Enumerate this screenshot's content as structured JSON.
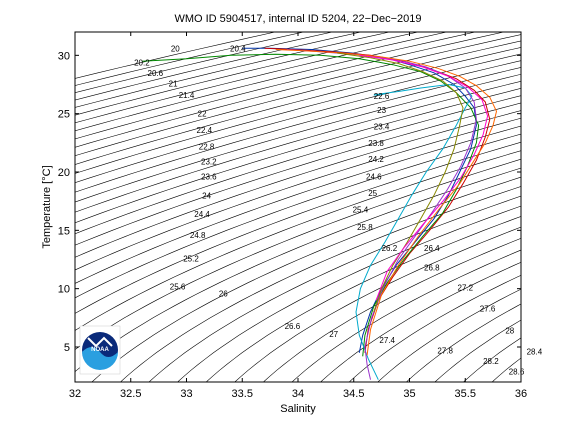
{
  "chart_data": {
    "type": "line",
    "title": "WMO ID 5904517, internal ID 5204, 22−Dec−2019",
    "xlabel": "Salinity",
    "ylabel": "Temperature [°C]",
    "xlim": [
      32,
      36
    ],
    "ylim": [
      2,
      32
    ],
    "x_ticks": [
      "32",
      "32.5",
      "33",
      "33.5",
      "34",
      "34.5",
      "35",
      "35.5",
      "36"
    ],
    "y_ticks": [
      "5",
      "10",
      "15",
      "20",
      "25",
      "30"
    ],
    "density_contours": {
      "step": 0.2,
      "range": [
        20,
        30
      ],
      "labels": [
        {
          "text": "20",
          "s": 32.9,
          "t": 30.6
        },
        {
          "text": "20.2",
          "s": 32.6,
          "t": 29.4
        },
        {
          "text": "20.4",
          "s": 33.46,
          "t": 30.6
        },
        {
          "text": "20.6",
          "s": 32.72,
          "t": 28.5
        },
        {
          "text": "21",
          "s": 32.88,
          "t": 27.6
        },
        {
          "text": "21.4",
          "s": 33.0,
          "t": 26.6
        },
        {
          "text": "22",
          "s": 33.14,
          "t": 25.0
        },
        {
          "text": "22.4",
          "s": 33.16,
          "t": 23.6
        },
        {
          "text": "22.6",
          "s": 34.75,
          "t": 26.5
        },
        {
          "text": "22.8",
          "s": 33.18,
          "t": 22.2
        },
        {
          "text": "23",
          "s": 34.75,
          "t": 25.3
        },
        {
          "text": "23.2",
          "s": 33.2,
          "t": 20.9
        },
        {
          "text": "23.4",
          "s": 34.75,
          "t": 23.9
        },
        {
          "text": "23.6",
          "s": 33.2,
          "t": 19.6
        },
        {
          "text": "23.8",
          "s": 34.7,
          "t": 22.5
        },
        {
          "text": "24",
          "s": 33.18,
          "t": 18.0
        },
        {
          "text": "24.2",
          "s": 34.7,
          "t": 21.1
        },
        {
          "text": "24.4",
          "s": 33.14,
          "t": 16.4
        },
        {
          "text": "24.6",
          "s": 34.68,
          "t": 19.6
        },
        {
          "text": "24.8",
          "s": 33.1,
          "t": 14.6
        },
        {
          "text": "25",
          "s": 34.67,
          "t": 18.2
        },
        {
          "text": "25.2",
          "s": 33.04,
          "t": 12.6
        },
        {
          "text": "25.4",
          "s": 34.56,
          "t": 16.8
        },
        {
          "text": "25.6",
          "s": 32.92,
          "t": 10.2
        },
        {
          "text": "25.8",
          "s": 34.6,
          "t": 15.3
        },
        {
          "text": "26",
          "s": 33.33,
          "t": 9.6
        },
        {
          "text": "26.2",
          "s": 34.82,
          "t": 13.5
        },
        {
          "text": "26.4",
          "s": 35.2,
          "t": 13.5
        },
        {
          "text": "26.6",
          "s": 33.95,
          "t": 6.8
        },
        {
          "text": "26.8",
          "s": 35.2,
          "t": 11.8
        },
        {
          "text": "27",
          "s": 34.32,
          "t": 6.1
        },
        {
          "text": "27.2",
          "s": 35.5,
          "t": 10.1
        },
        {
          "text": "27.4",
          "s": 34.8,
          "t": 5.6
        },
        {
          "text": "27.6",
          "s": 35.7,
          "t": 8.3
        },
        {
          "text": "27.8",
          "s": 35.32,
          "t": 4.7
        },
        {
          "text": "28",
          "s": 35.9,
          "t": 6.4
        },
        {
          "text": "28.2",
          "s": 35.73,
          "t": 3.8
        },
        {
          "text": "28.4",
          "s": 36.12,
          "t": 4.6
        },
        {
          "text": "28.6",
          "s": 35.96,
          "t": 2.9
        }
      ]
    },
    "series": [
      {
        "color": "#0033aa",
        "x": [
          34.55,
          34.58,
          34.65,
          34.75,
          34.88,
          35.05,
          35.22,
          35.35,
          35.45,
          35.55,
          35.6,
          35.58,
          35.5,
          35.4,
          35.22,
          35.0,
          34.78,
          34.48,
          34.12,
          33.75,
          33.5
        ],
        "y": [
          4.5,
          6.0,
          8.0,
          10.0,
          12.0,
          14.0,
          16.0,
          18.0,
          20.0,
          22.0,
          24.0,
          25.5,
          26.5,
          27.5,
          28.5,
          29.2,
          29.8,
          30.2,
          30.5,
          30.6,
          30.6
        ]
      },
      {
        "color": "#cc0000",
        "x": [
          34.6,
          34.63,
          34.72,
          34.85,
          35.0,
          35.18,
          35.35,
          35.48,
          35.6,
          35.68,
          35.72,
          35.68,
          35.58,
          35.42,
          35.2,
          34.95,
          34.65,
          34.3,
          33.95,
          33.7
        ],
        "y": [
          4.5,
          6.5,
          9.0,
          11.0,
          13.0,
          15.0,
          17.0,
          19.0,
          21.0,
          23.0,
          24.5,
          26.0,
          27.0,
          28.0,
          28.8,
          29.5,
          30.0,
          30.3,
          30.5,
          30.6
        ]
      },
      {
        "color": "#008800",
        "x": [
          34.58,
          34.6,
          34.68,
          34.8,
          34.95,
          35.12,
          35.3,
          35.42,
          35.52,
          35.6,
          35.62,
          35.55,
          35.42,
          35.28,
          35.1,
          34.85,
          34.55,
          34.2,
          33.8,
          33.4,
          33.0,
          32.6
        ],
        "y": [
          4.2,
          6.0,
          8.5,
          10.5,
          12.5,
          14.5,
          16.5,
          18.5,
          20.5,
          22.5,
          24.0,
          25.5,
          26.8,
          27.8,
          28.6,
          29.2,
          29.7,
          30.0,
          30.1,
          30.0,
          29.7,
          29.5
        ]
      },
      {
        "color": "#00aacc",
        "x": [
          34.72,
          34.63,
          34.55,
          34.52,
          34.56,
          34.65,
          34.78,
          34.9,
          35.02,
          35.15,
          35.3,
          35.42,
          35.5,
          35.56,
          35.5,
          35.35,
          35.1,
          34.9,
          34.75,
          34.68,
          34.7,
          34.78
        ],
        "y": [
          2.2,
          4.0,
          6.0,
          8.0,
          10.0,
          12.0,
          14.0,
          16.0,
          18.0,
          20.0,
          22.0,
          24.0,
          25.5,
          26.5,
          27.2,
          27.5,
          27.2,
          26.9,
          26.7,
          26.6,
          26.6,
          26.7
        ]
      },
      {
        "color": "#9933cc",
        "x": [
          34.65,
          34.62,
          34.6,
          34.66,
          34.76,
          34.9,
          35.05,
          35.2,
          35.34,
          35.46,
          35.55,
          35.6,
          35.58,
          35.5,
          35.35,
          35.15,
          34.9,
          34.6,
          34.2,
          33.9
        ],
        "y": [
          2.2,
          3.5,
          5.0,
          7.5,
          10.0,
          12.5,
          14.5,
          16.5,
          18.5,
          20.5,
          22.5,
          24.5,
          26.0,
          27.2,
          28.2,
          29.0,
          29.6,
          30.0,
          30.3,
          30.5
        ]
      },
      {
        "color": "#ff6600",
        "x": [
          34.62,
          34.65,
          34.75,
          34.9,
          35.08,
          35.28,
          35.45,
          35.58,
          35.68,
          35.75,
          35.78,
          35.72,
          35.6,
          35.45,
          35.25,
          35.0,
          34.72,
          34.4,
          34.05,
          33.8
        ],
        "y": [
          4.3,
          6.5,
          9.5,
          12.0,
          14.5,
          17.0,
          19.0,
          21.0,
          22.5,
          24.0,
          25.2,
          26.4,
          27.4,
          28.2,
          28.9,
          29.5,
          29.9,
          30.2,
          30.4,
          30.5
        ]
      },
      {
        "color": "#888800",
        "x": [
          34.68,
          34.75,
          34.85,
          34.98,
          35.1,
          35.22,
          35.32,
          35.4,
          35.45,
          35.48,
          35.42,
          35.3,
          35.12,
          34.9,
          34.65,
          34.35
        ],
        "y": [
          8.0,
          10.0,
          12.0,
          14.0,
          16.0,
          18.0,
          20.0,
          22.0,
          24.0,
          25.5,
          26.8,
          27.8,
          28.6,
          29.3,
          29.8,
          30.2
        ]
      },
      {
        "color": "#ff00cc",
        "x": [
          34.7,
          34.8,
          34.95,
          35.12,
          35.3,
          35.46,
          35.58,
          35.66,
          35.7,
          35.65,
          35.52,
          35.35,
          35.12,
          34.85,
          34.55
        ],
        "y": [
          9.0,
          11.5,
          13.5,
          15.5,
          17.5,
          19.5,
          21.5,
          23.2,
          24.8,
          26.2,
          27.3,
          28.2,
          29.0,
          29.6,
          30.0
        ]
      }
    ]
  }
}
